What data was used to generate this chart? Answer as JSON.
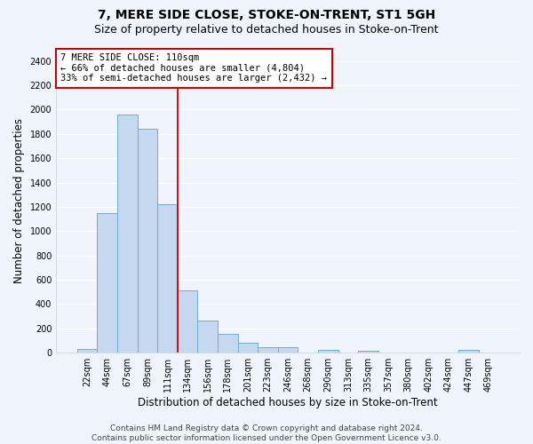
{
  "title": "7, MERE SIDE CLOSE, STOKE-ON-TRENT, ST1 5GH",
  "subtitle": "Size of property relative to detached houses in Stoke-on-Trent",
  "xlabel": "Distribution of detached houses by size in Stoke-on-Trent",
  "ylabel": "Number of detached properties",
  "bin_labels": [
    "22sqm",
    "44sqm",
    "67sqm",
    "89sqm",
    "111sqm",
    "134sqm",
    "156sqm",
    "178sqm",
    "201sqm",
    "223sqm",
    "246sqm",
    "268sqm",
    "290sqm",
    "313sqm",
    "335sqm",
    "357sqm",
    "380sqm",
    "402sqm",
    "424sqm",
    "447sqm",
    "469sqm"
  ],
  "bar_values": [
    30,
    1150,
    1960,
    1840,
    1220,
    510,
    265,
    155,
    80,
    48,
    42,
    0,
    25,
    0,
    18,
    0,
    0,
    0,
    0,
    20,
    0
  ],
  "bar_color": "#c5d8f0",
  "bar_edge_color": "#6baed6",
  "vline_color": "#cc0000",
  "annotation_text": "7 MERE SIDE CLOSE: 110sqm\n← 66% of detached houses are smaller (4,804)\n33% of semi-detached houses are larger (2,432) →",
  "annotation_box_color": "#cc0000",
  "ylim": [
    0,
    2500
  ],
  "yticks": [
    0,
    200,
    400,
    600,
    800,
    1000,
    1200,
    1400,
    1600,
    1800,
    2000,
    2200,
    2400
  ],
  "footer": "Contains HM Land Registry data © Crown copyright and database right 2024.\nContains public sector information licensed under the Open Government Licence v3.0.",
  "bg_color": "#f0f4fc",
  "grid_color": "#e8eef8",
  "title_fontsize": 10,
  "subtitle_fontsize": 9,
  "axis_label_fontsize": 8.5,
  "tick_fontsize": 7,
  "footer_fontsize": 6.5,
  "annotation_fontsize": 7.5
}
